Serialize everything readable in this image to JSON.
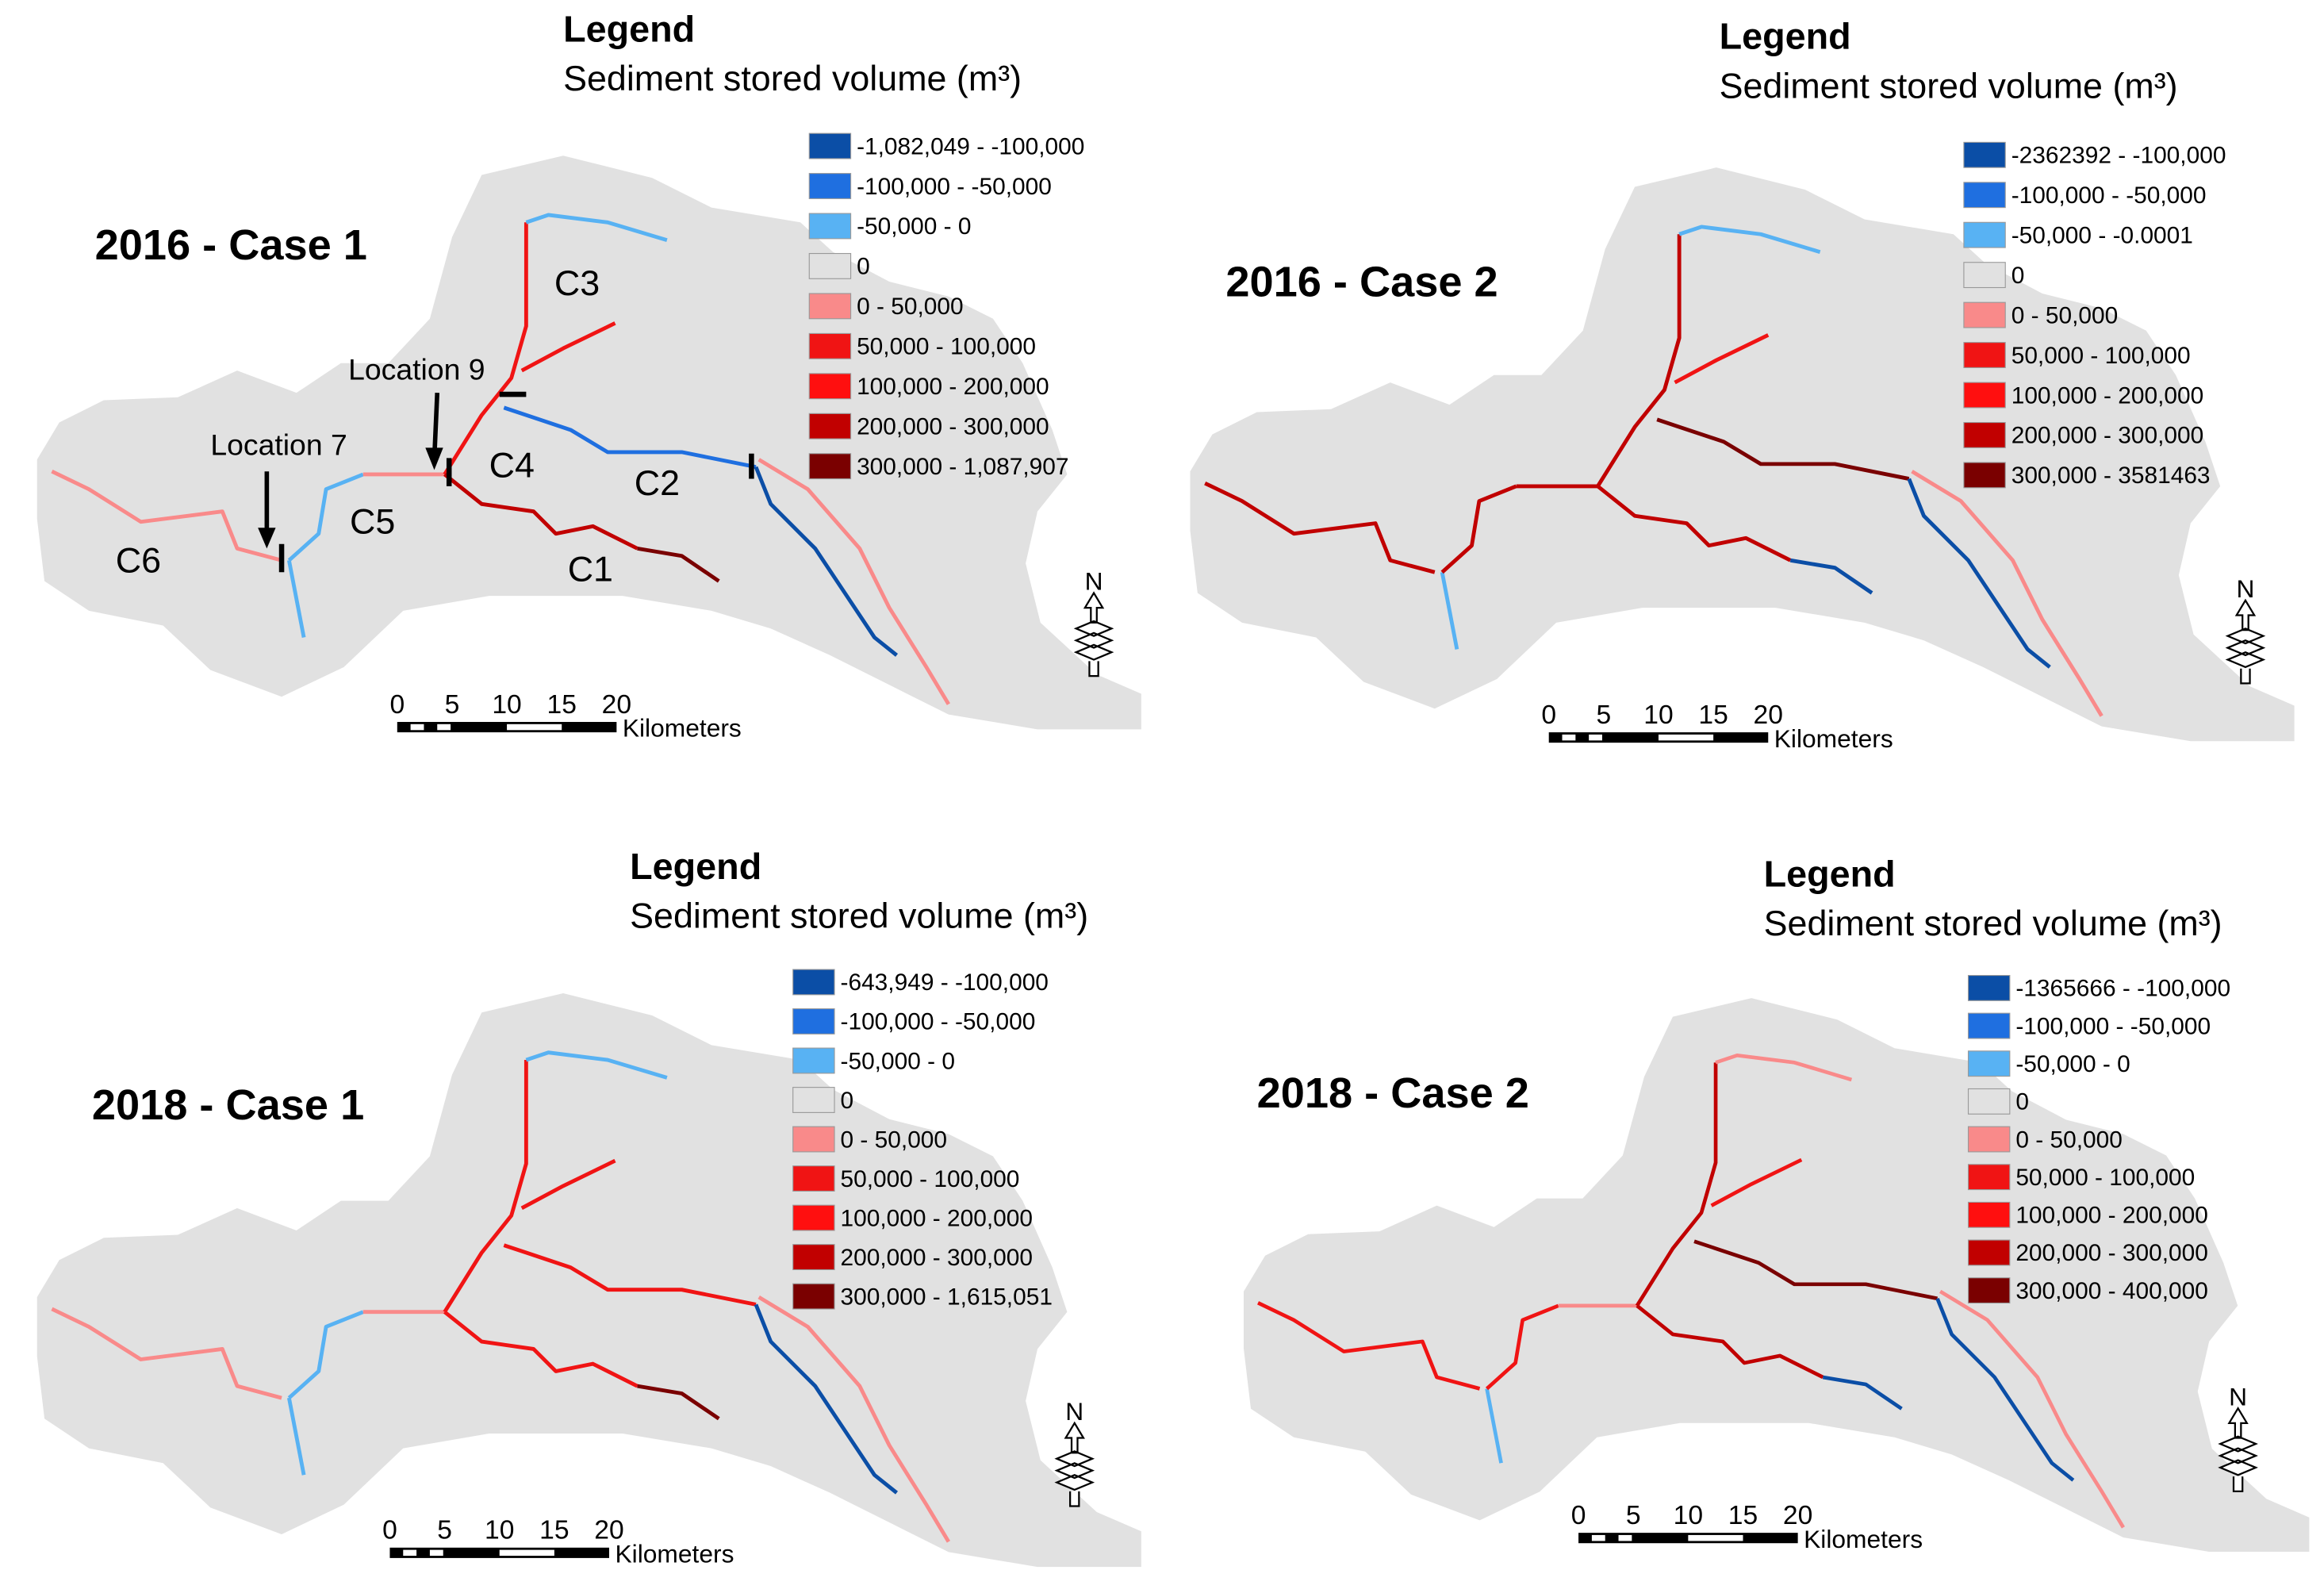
{
  "panels": [
    {
      "title": "2016 - Case 1",
      "legend_title": "Legend",
      "legend_subtitle": "Sediment stored volume (m³)",
      "legend": [
        {
          "label": "-1,082,049 - -100,000",
          "color": "#0b4ea6"
        },
        {
          "label": "-100,000 - -50,000",
          "color": "#1f6fe0"
        },
        {
          "label": "-50,000 - 0",
          "color": "#58b2f3"
        },
        {
          "label": "0",
          "color": "#e1e1e1"
        },
        {
          "label": "0 - 50,000",
          "color": "#f98a8a"
        },
        {
          "label": "50,000 - 100,000",
          "color": "#f01414"
        },
        {
          "label": "100,000 - 200,000",
          "color": "#ff0f0f"
        },
        {
          "label": "200,000 - 300,000",
          "color": "#c10000"
        },
        {
          "label": "300,000 - 1,087,907",
          "color": "#7a0000"
        }
      ],
      "scale_labels": [
        "0",
        "5",
        "10",
        "15",
        "20"
      ],
      "scale_unit": "Kilometers",
      "north": "N",
      "channels": [
        "C1",
        "C2",
        "C3",
        "C4",
        "C5",
        "C6"
      ],
      "locations": [
        "Location 7",
        "Location 9"
      ]
    },
    {
      "title": "2016 - Case 2",
      "legend_title": "Legend",
      "legend_subtitle": "Sediment stored volume (m³)",
      "legend": [
        {
          "label": "-2362392 - -100,000",
          "color": "#0b4ea6"
        },
        {
          "label": "-100,000 - -50,000",
          "color": "#1f6fe0"
        },
        {
          "label": "-50,000 - -0.0001",
          "color": "#58b2f3"
        },
        {
          "label": "0",
          "color": "#e1e1e1"
        },
        {
          "label": "0 - 50,000",
          "color": "#f98a8a"
        },
        {
          "label": "50,000 - 100,000",
          "color": "#f01414"
        },
        {
          "label": "100,000 - 200,000",
          "color": "#ff0f0f"
        },
        {
          "label": "200,000 - 300,000",
          "color": "#c10000"
        },
        {
          "label": "300,000 - 3581463",
          "color": "#7a0000"
        }
      ],
      "scale_labels": [
        "0",
        "5",
        "10",
        "15",
        "20"
      ],
      "scale_unit": "Kilometers",
      "north": "N"
    },
    {
      "title": "2018 - Case 1",
      "legend_title": "Legend",
      "legend_subtitle": "Sediment stored volume (m³)",
      "legend": [
        {
          "label": "-643,949 - -100,000",
          "color": "#0b4ea6"
        },
        {
          "label": "-100,000 - -50,000",
          "color": "#1f6fe0"
        },
        {
          "label": "-50,000 - 0",
          "color": "#58b2f3"
        },
        {
          "label": "0",
          "color": "#e1e1e1"
        },
        {
          "label": "0 - 50,000",
          "color": "#f98a8a"
        },
        {
          "label": "50,000 - 100,000",
          "color": "#f01414"
        },
        {
          "label": "100,000 - 200,000",
          "color": "#ff0f0f"
        },
        {
          "label": "200,000 - 300,000",
          "color": "#c10000"
        },
        {
          "label": "300,000 - 1,615,051",
          "color": "#7a0000"
        }
      ],
      "scale_labels": [
        "0",
        "5",
        "10",
        "15",
        "20"
      ],
      "scale_unit": "Kilometers",
      "north": "N"
    },
    {
      "title": "2018 - Case 2",
      "legend_title": "Legend",
      "legend_subtitle": "Sediment stored volume (m³)",
      "legend": [
        {
          "label": "-1365666 - -100,000",
          "color": "#0b4ea6"
        },
        {
          "label": "-100,000 - -50,000",
          "color": "#1f6fe0"
        },
        {
          "label": "-50,000 - 0",
          "color": "#58b2f3"
        },
        {
          "label": "0",
          "color": "#e1e1e1"
        },
        {
          "label": "0 - 50,000",
          "color": "#f98a8a"
        },
        {
          "label": "50,000 - 100,000",
          "color": "#f01414"
        },
        {
          "label": "100,000 - 200,000",
          "color": "#ff0f0f"
        },
        {
          "label": "200,000 - 300,000",
          "color": "#c10000"
        },
        {
          "label": "300,000 - 400,000",
          "color": "#7a0000"
        }
      ],
      "scale_labels": [
        "0",
        "5",
        "10",
        "15",
        "20"
      ],
      "scale_unit": "Kilometers",
      "north": "N"
    }
  ]
}
